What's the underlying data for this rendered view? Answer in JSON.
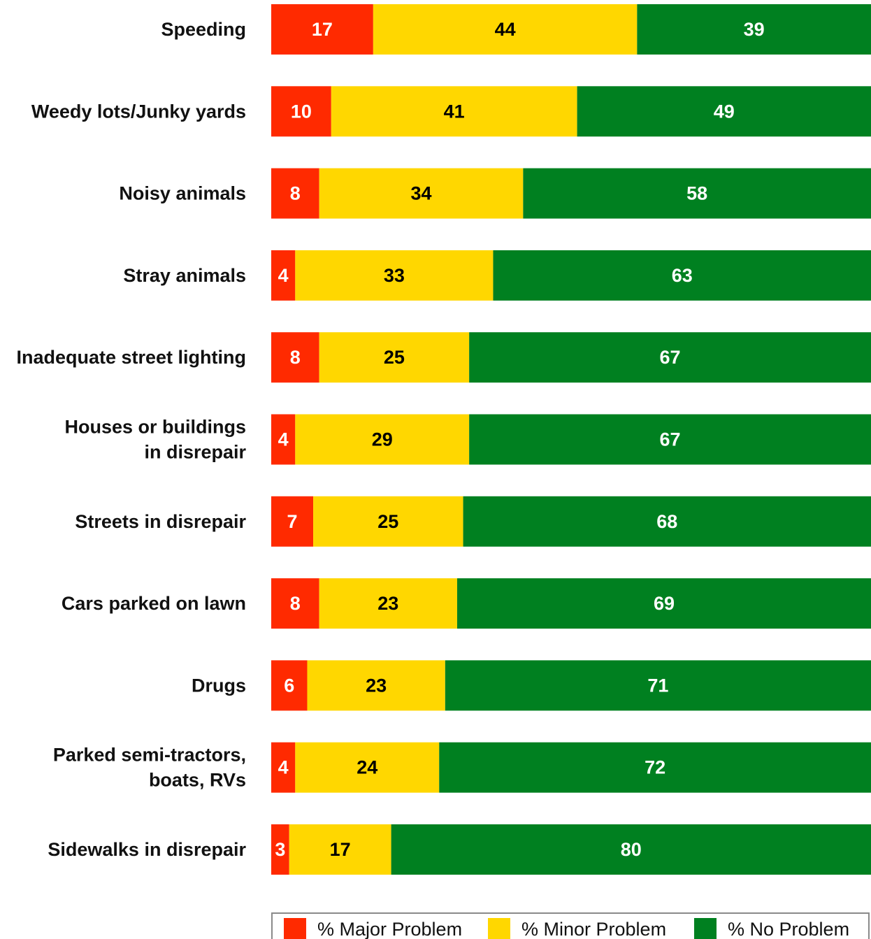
{
  "chart_data": {
    "type": "bar",
    "orientation": "horizontal",
    "stacked": true,
    "categories": [
      [
        "Speeding"
      ],
      [
        "Weedy lots/Junky yards"
      ],
      [
        "Noisy animals"
      ],
      [
        "Stray animals"
      ],
      [
        "Inadequate street lighting"
      ],
      [
        "Houses or buildings",
        "in disrepair"
      ],
      [
        "Streets in disrepair"
      ],
      [
        "Cars parked on lawn"
      ],
      [
        "Drugs"
      ],
      [
        "Parked semi-tractors,",
        "boats, RVs"
      ],
      [
        "Sidewalks in disrepair"
      ]
    ],
    "series": [
      {
        "name": "% Major Problem",
        "color": "#ff2a00",
        "label_color": "#ffffff",
        "values": [
          17,
          10,
          8,
          4,
          8,
          4,
          7,
          8,
          6,
          4,
          3
        ]
      },
      {
        "name": "% Minor Problem",
        "color": "#ffd700",
        "label_color": "#000000",
        "values": [
          44,
          41,
          34,
          33,
          25,
          29,
          25,
          23,
          23,
          24,
          17
        ]
      },
      {
        "name": "% No Problem",
        "color": "#008020",
        "label_color": "#ffffff",
        "values": [
          39,
          49,
          58,
          63,
          67,
          67,
          68,
          69,
          71,
          72,
          80
        ]
      }
    ],
    "xlim": [
      0,
      100
    ],
    "data_labels": true,
    "grid": false,
    "legend_position": "bottom"
  }
}
